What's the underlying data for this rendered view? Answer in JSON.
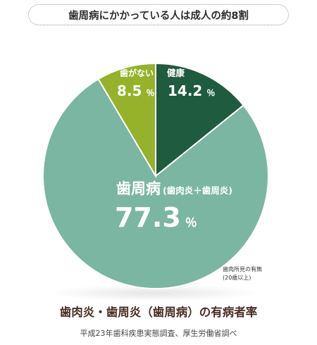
{
  "banner": "歯周病にかかっている人は成人の約8割",
  "chart_data": {
    "type": "pie",
    "title": "歯肉炎・歯周炎（歯周病）の有病者率",
    "slices": [
      {
        "label": "健康",
        "value": 14.2,
        "value_text": "14.2",
        "unit": "％",
        "color": "#1f5b3e"
      },
      {
        "label": "歯周病",
        "sublabel": "(歯肉炎＋歯周炎)",
        "value": 77.3,
        "value_text": "77.3",
        "unit": "％",
        "color": "#7bb6a2"
      },
      {
        "label": "歯がない",
        "value": 8.5,
        "value_text": "8.5",
        "unit": "％",
        "color": "#95b22a"
      }
    ],
    "annotation": [
      "歯肉所見の有無",
      "(20歳以上)"
    ],
    "source": "平成23年歯科疾患実態調査、厚生労働省調べ"
  }
}
